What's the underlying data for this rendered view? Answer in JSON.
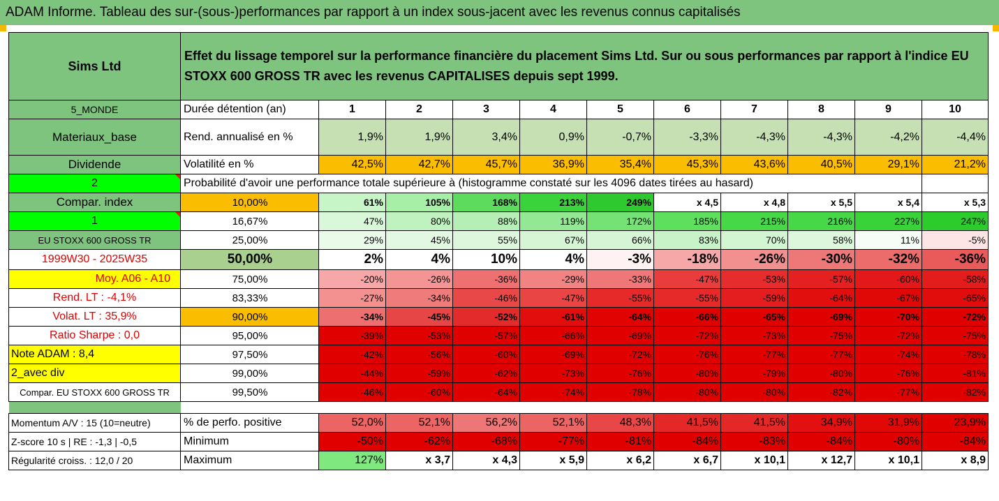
{
  "title": "ADAM Informe. Tableau des sur-(sous-)performances par rapport à un index sous-jacent avec les revenus connus capitalisés",
  "header": {
    "left": "Sims Ltd",
    "right": "Effet du lissage temporel sur la performance financière du placement Sims Ltd. Sur ou sous performances par rapport à l'indice EU STOXX 600 GROSS TR avec les revenus CAPITALISES depuis sept 1999."
  },
  "colors": {
    "green_header": "#7ec47e",
    "orange": "#fbbd00",
    "yellow": "#ffff00",
    "bright_green": "#00ff00",
    "dark_red": "#e00000",
    "red_label": "#e00000"
  },
  "rows": [
    {
      "left": "5_MONDE",
      "mid": "Durée détention (an)",
      "cells": [
        "1",
        "2",
        "3",
        "4",
        "5",
        "6",
        "7",
        "8",
        "9",
        "10"
      ]
    },
    {
      "left": "Materiaux_base",
      "mid": "Rend. annualisé en %",
      "cells": [
        "1,9%",
        "1,9%",
        "3,4%",
        "0,9%",
        "-0,7%",
        "-3,3%",
        "-4,3%",
        "-4,3%",
        "-4,2%",
        "-4,4%"
      ]
    },
    {
      "left": "Dividende",
      "mid": "Volatilité en %",
      "cells": [
        "42,5%",
        "42,7%",
        "45,7%",
        "36,9%",
        "35,4%",
        "45,3%",
        "43,6%",
        "40,5%",
        "29,1%",
        "21,2%"
      ]
    },
    {
      "left": "2",
      "mid": "Probabilité d'avoir une performance totale supérieure à (histogramme constaté sur les 4096 dates tirées au hasard)"
    },
    {
      "left": "Compar. index",
      "mid": "10,00%",
      "cells": [
        "61%",
        "105%",
        "168%",
        "213%",
        "249%",
        "x 4,5",
        "x 4,8",
        "x 5,5",
        "x 5,4",
        "x 5,3"
      ]
    },
    {
      "left": "1",
      "mid": "16,67%",
      "cells": [
        "47%",
        "80%",
        "88%",
        "119%",
        "172%",
        "185%",
        "215%",
        "216%",
        "227%",
        "247%"
      ]
    },
    {
      "left": "EU STOXX 600 GROSS TR",
      "mid": "25,00%",
      "cells": [
        "29%",
        "45%",
        "55%",
        "67%",
        "66%",
        "83%",
        "70%",
        "58%",
        "11%",
        "-5%"
      ]
    },
    {
      "left": "1999W30 - 2025W35",
      "mid": "50,00%",
      "cells": [
        "2%",
        "4%",
        "10%",
        "4%",
        "-3%",
        "-18%",
        "-26%",
        "-30%",
        "-32%",
        "-36%"
      ]
    },
    {
      "left": "Moy. A06 - A10",
      "mid": "75,00%",
      "cells": [
        "-20%",
        "-26%",
        "-36%",
        "-29%",
        "-33%",
        "-47%",
        "-53%",
        "-57%",
        "-60%",
        "-58%"
      ]
    },
    {
      "left": "Rend. LT :   -4,1%",
      "mid": "83,33%",
      "cells": [
        "-27%",
        "-34%",
        "-46%",
        "-47%",
        "-55%",
        "-55%",
        "-59%",
        "-64%",
        "-67%",
        "-65%"
      ]
    },
    {
      "left": "Volat. LT :   35,9%",
      "mid": "90,00%",
      "cells": [
        "-34%",
        "-45%",
        "-52%",
        "-61%",
        "-64%",
        "-66%",
        "-65%",
        "-69%",
        "-70%",
        "-72%"
      ]
    },
    {
      "left": "Ratio Sharpe :    0,0",
      "mid": "95,00%",
      "cells": [
        "-39%",
        "-53%",
        "-57%",
        "-66%",
        "-69%",
        "-72%",
        "-73%",
        "-75%",
        "-72%",
        "-75%"
      ]
    },
    {
      "left": "Note ADAM : 8,4",
      "mid": "97,50%",
      "cells": [
        "-42%",
        "-56%",
        "-60%",
        "-69%",
        "-72%",
        "-76%",
        "-77%",
        "-77%",
        "-74%",
        "-78%"
      ]
    },
    {
      "left": "2_avec div",
      "mid": "99,00%",
      "cells": [
        "-44%",
        "-59%",
        "-62%",
        "-73%",
        "-76%",
        "-80%",
        "-79%",
        "-80%",
        "-76%",
        "-81%"
      ]
    },
    {
      "left": "Compar. EU STOXX 600 GROSS TR",
      "mid": "99,50%",
      "cells": [
        "-46%",
        "-60%",
        "-64%",
        "-74%",
        "-78%",
        "-80%",
        "-80%",
        "-82%",
        "-77%",
        "-82%"
      ]
    },
    {
      "left": "Momentum A/V : 15 (10=neutre)",
      "mid": "% de perfo. positive",
      "cells": [
        "52,0%",
        "52,1%",
        "56,2%",
        "52,1%",
        "48,3%",
        "41,5%",
        "41,5%",
        "34,9%",
        "31,9%",
        "23,9%"
      ]
    },
    {
      "left": "Z-score 10 s  |  RE : -1,3  |  -0,5",
      "mid": "Minimum",
      "cells": [
        "-50%",
        "-62%",
        "-68%",
        "-77%",
        "-81%",
        "-84%",
        "-83%",
        "-84%",
        "-80%",
        "-84%"
      ]
    },
    {
      "left": "Régularité croiss. : 12,0 / 20",
      "mid": "Maximum",
      "cells": [
        "127%",
        "x 3,7",
        "x 4,3",
        "x 5,9",
        "x 6,2",
        "x 6,7",
        "x 10,1",
        "x 12,7",
        "x 10,1",
        "x 8,9"
      ]
    }
  ]
}
